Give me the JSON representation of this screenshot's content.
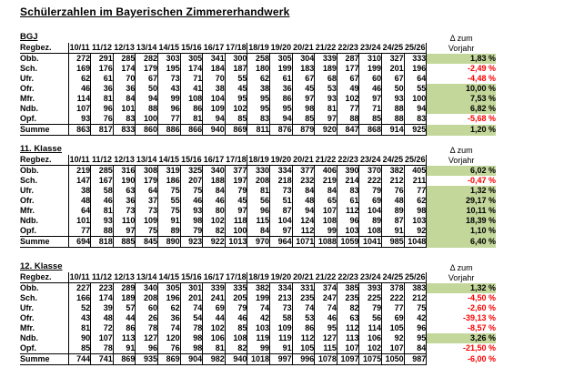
{
  "title": "Schülerzahlen im Bayerischen Zimmererhandwerk",
  "colors": {
    "positive_delta_background": "#c4d79b",
    "negative_delta_text": "#ff0000",
    "text": "#000000",
    "background": "#ffffff"
  },
  "table_header": {
    "region_label": "Regbez.",
    "years": [
      "10/11",
      "11/12",
      "12/13",
      "13/14",
      "14/15",
      "15/16",
      "16/17",
      "17/18",
      "18/19",
      "19/20",
      "20/21",
      "21/22",
      "22/23",
      "23/24",
      "24/25",
      "25/26"
    ],
    "delta_line1": "Δ zum",
    "delta_line2": "Vorjahr"
  },
  "tables": [
    {
      "label": "BGJ",
      "rows": [
        {
          "region": "Obb.",
          "values": [
            272,
            291,
            285,
            282,
            303,
            305,
            341,
            300,
            258,
            305,
            304,
            339,
            287,
            310,
            327,
            333
          ],
          "delta": "1,83 %",
          "positive": true,
          "is_total": false
        },
        {
          "region": "Sch.",
          "values": [
            169,
            176,
            174,
            179,
            195,
            174,
            184,
            187,
            180,
            199,
            183,
            189,
            177,
            199,
            201,
            196
          ],
          "delta": "-2,49 %",
          "positive": false,
          "is_total": false
        },
        {
          "region": "Ufr.",
          "values": [
            62,
            61,
            70,
            67,
            73,
            71,
            70,
            55,
            62,
            61,
            67,
            68,
            67,
            60,
            67,
            64
          ],
          "delta": "-4,48 %",
          "positive": false,
          "is_total": false
        },
        {
          "region": "Ofr.",
          "values": [
            46,
            36,
            36,
            50,
            43,
            41,
            38,
            45,
            38,
            36,
            45,
            53,
            49,
            46,
            50,
            55
          ],
          "delta": "10,00 %",
          "positive": true,
          "is_total": false
        },
        {
          "region": "Mfr.",
          "values": [
            114,
            81,
            84,
            94,
            99,
            108,
            104,
            95,
            95,
            86,
            97,
            93,
            102,
            97,
            93,
            100
          ],
          "delta": "7,53 %",
          "positive": true,
          "is_total": false
        },
        {
          "region": "Ndb.",
          "values": [
            107,
            96,
            101,
            88,
            96,
            86,
            109,
            102,
            95,
            95,
            98,
            81,
            77,
            71,
            88,
            94
          ],
          "delta": "6,82 %",
          "positive": true,
          "is_total": false
        },
        {
          "region": "Opf.",
          "values": [
            93,
            76,
            83,
            100,
            77,
            81,
            94,
            85,
            83,
            94,
            85,
            97,
            88,
            85,
            88,
            83
          ],
          "delta": "-5,68 %",
          "positive": false,
          "is_total": false
        },
        {
          "region": "Summe",
          "values": [
            863,
            817,
            833,
            860,
            886,
            866,
            940,
            869,
            811,
            876,
            879,
            920,
            847,
            868,
            914,
            925
          ],
          "delta": "1,20 %",
          "positive": true,
          "is_total": true
        }
      ]
    },
    {
      "label": "11. Klasse",
      "rows": [
        {
          "region": "Obb.",
          "values": [
            219,
            285,
            316,
            308,
            319,
            325,
            340,
            377,
            330,
            334,
            377,
            406,
            390,
            370,
            382,
            405
          ],
          "delta": "6,02 %",
          "positive": true,
          "is_total": false
        },
        {
          "region": "Sch.",
          "values": [
            147,
            167,
            190,
            179,
            186,
            207,
            188,
            197,
            208,
            218,
            232,
            219,
            214,
            222,
            212,
            211
          ],
          "delta": "-0,47 %",
          "positive": false,
          "is_total": false
        },
        {
          "region": "Ufr.",
          "values": [
            38,
            58,
            63,
            64,
            75,
            75,
            84,
            79,
            81,
            73,
            84,
            84,
            83,
            79,
            76,
            77
          ],
          "delta": "1,32 %",
          "positive": true,
          "is_total": false
        },
        {
          "region": "Ofr.",
          "values": [
            48,
            46,
            36,
            37,
            55,
            46,
            46,
            45,
            56,
            51,
            48,
            65,
            61,
            69,
            48,
            62
          ],
          "delta": "29,17 %",
          "positive": true,
          "is_total": false
        },
        {
          "region": "Mfr.",
          "values": [
            64,
            81,
            73,
            73,
            75,
            93,
            80,
            97,
            96,
            87,
            94,
            107,
            112,
            104,
            89,
            98
          ],
          "delta": "10,11 %",
          "positive": true,
          "is_total": false
        },
        {
          "region": "Ndb.",
          "values": [
            101,
            93,
            110,
            109,
            91,
            98,
            102,
            118,
            115,
            104,
            124,
            108,
            96,
            89,
            87,
            103
          ],
          "delta": "18,39 %",
          "positive": true,
          "is_total": false
        },
        {
          "region": "Opf.",
          "values": [
            77,
            88,
            97,
            75,
            89,
            79,
            82,
            100,
            84,
            97,
            112,
            99,
            103,
            108,
            91,
            92
          ],
          "delta": "1,10 %",
          "positive": true,
          "is_total": false
        },
        {
          "region": "Summe",
          "values": [
            694,
            818,
            885,
            845,
            890,
            923,
            922,
            1013,
            970,
            964,
            1071,
            1088,
            1059,
            1041,
            985,
            1048
          ],
          "delta": "6,40 %",
          "positive": true,
          "is_total": true
        }
      ]
    },
    {
      "label": "12. Klasse",
      "rows": [
        {
          "region": "Obb.",
          "values": [
            227,
            223,
            289,
            340,
            305,
            301,
            339,
            335,
            382,
            334,
            331,
            374,
            385,
            393,
            378,
            383
          ],
          "delta": "1,32 %",
          "positive": true,
          "is_total": false
        },
        {
          "region": "Sch.",
          "values": [
            166,
            174,
            189,
            208,
            196,
            201,
            241,
            205,
            199,
            213,
            235,
            247,
            235,
            225,
            222,
            212
          ],
          "delta": "-4,50 %",
          "positive": false,
          "is_total": false
        },
        {
          "region": "Ufr.",
          "values": [
            52,
            39,
            57,
            60,
            62,
            74,
            69,
            79,
            74,
            73,
            74,
            74,
            82,
            79,
            77,
            75
          ],
          "delta": "-2,60 %",
          "positive": false,
          "is_total": false
        },
        {
          "region": "Ofr.",
          "values": [
            43,
            48,
            44,
            26,
            36,
            54,
            44,
            46,
            42,
            58,
            53,
            46,
            63,
            56,
            69,
            42
          ],
          "delta": "-39,13 %",
          "positive": false,
          "is_total": false
        },
        {
          "region": "Mfr.",
          "values": [
            81,
            72,
            86,
            78,
            74,
            78,
            102,
            85,
            103,
            109,
            86,
            95,
            112,
            114,
            105,
            96
          ],
          "delta": "-8,57 %",
          "positive": false,
          "is_total": false
        },
        {
          "region": "Ndb.",
          "values": [
            90,
            107,
            113,
            127,
            120,
            98,
            106,
            108,
            119,
            119,
            112,
            127,
            113,
            106,
            92,
            95
          ],
          "delta": "3,26 %",
          "positive": true,
          "is_total": false
        },
        {
          "region": "Opf.",
          "values": [
            85,
            78,
            91,
            96,
            76,
            98,
            81,
            82,
            99,
            91,
            105,
            115,
            107,
            102,
            107,
            84
          ],
          "delta": "-21,50 %",
          "positive": false,
          "is_total": false
        },
        {
          "region": "Summe",
          "values": [
            744,
            741,
            869,
            935,
            869,
            904,
            982,
            940,
            1018,
            997,
            996,
            1078,
            1097,
            1075,
            1050,
            987
          ],
          "delta": "-6,00 %",
          "positive": false,
          "is_total": true
        }
      ]
    }
  ]
}
